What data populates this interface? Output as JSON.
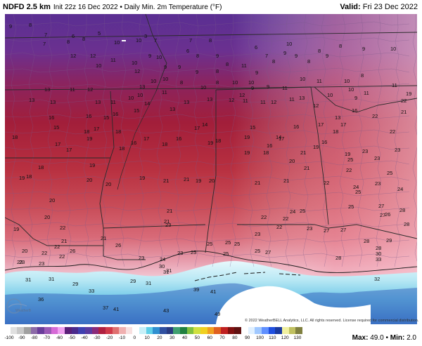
{
  "header": {
    "title_main": "NDFD 2.5 km",
    "title_rest": "Init 22z 16 Dec 2022 • Daily Min. 2m Temperature (°F)",
    "valid_label": "Valid:",
    "valid_value": "Fri 23 Dec 2022"
  },
  "copyright": "© 2022 WeatherBELL Analytics, LLC. All rights reserved. License required for commercial distribution.",
  "footer": {
    "max_label": "Max:",
    "max_value": "49.0",
    "min_label": "Min:",
    "min_value": "2.0",
    "colorbar_ticks": [
      "-100",
      "-90",
      "-80",
      "-70",
      "-60",
      "-50",
      "-40",
      "-30",
      "-20",
      "-10",
      "0",
      "10",
      "20",
      "30",
      "40",
      "50",
      "60",
      "70",
      "80",
      "90",
      "100",
      "110",
      "120",
      "130"
    ],
    "colorbar_colors": [
      "#ffffff",
      "#e0e0e0",
      "#c8c8c8",
      "#a0a0a0",
      "#8c6aa8",
      "#6a3d9a",
      "#9b59b6",
      "#d66ad6",
      "#f0a0f0",
      "#5a1f78",
      "#4b2a8c",
      "#4040b0",
      "#5a3aa0",
      "#8a2a7a",
      "#b02040",
      "#d03a4a",
      "#e07070",
      "#f0b0b0",
      "#f8e0e0",
      "#ffffff",
      "#c8f0f8",
      "#60d0e8",
      "#3090d0",
      "#3050a0",
      "#2a3a80",
      "#40a070",
      "#208040",
      "#80c040",
      "#d0e040",
      "#f0d020",
      "#f0a020",
      "#e06020",
      "#c02020",
      "#801010",
      "#601010",
      "#ffffff",
      "#e0f0ff",
      "#a0c8ff",
      "#6090ff",
      "#2050e0",
      "#1a3aa0",
      "#f0f0a0",
      "#c0c060",
      "#808040"
    ],
    "logo_name": "WeatherBELL logo"
  },
  "map": {
    "state_border_color": "#2a2a2a",
    "county_border_color": "#7a5a8a",
    "labels": [
      {
        "v": "9"
      },
      {
        "v": "8"
      },
      {
        "v": "7"
      },
      {
        "v": "7"
      },
      {
        "v": "8"
      },
      {
        "v": "6"
      },
      {
        "v": "8"
      },
      {
        "v": "5"
      },
      {
        "v": "3"
      },
      {
        "v": "7"
      },
      {
        "v": "7"
      },
      {
        "v": "8"
      },
      {
        "v": "10"
      },
      {
        "v": "10"
      },
      {
        "v": "9"
      },
      {
        "v": "10"
      },
      {
        "v": "6"
      },
      {
        "v": "8"
      },
      {
        "v": "9"
      },
      {
        "v": "6"
      },
      {
        "v": "7"
      },
      {
        "v": "10"
      },
      {
        "v": "8"
      },
      {
        "v": "8"
      },
      {
        "v": "9"
      },
      {
        "v": "10"
      },
      {
        "v": "12"
      },
      {
        "v": "12"
      },
      {
        "v": "11"
      },
      {
        "v": "10"
      },
      {
        "v": "9"
      },
      {
        "v": "9"
      },
      {
        "v": "9"
      },
      {
        "v": "8"
      },
      {
        "v": "8"
      },
      {
        "v": "11"
      },
      {
        "v": "9"
      },
      {
        "v": "8"
      },
      {
        "v": "9"
      },
      {
        "v": "9"
      },
      {
        "v": "8"
      },
      {
        "v": "9"
      },
      {
        "v": "10"
      },
      {
        "v": "12"
      },
      {
        "v": "10"
      },
      {
        "v": "8"
      },
      {
        "v": "8"
      },
      {
        "v": "10"
      },
      {
        "v": "10"
      },
      {
        "v": "11"
      },
      {
        "v": "10"
      },
      {
        "v": "10"
      },
      {
        "v": "11"
      },
      {
        "v": "11"
      },
      {
        "v": "13"
      },
      {
        "v": "11"
      },
      {
        "v": "12"
      },
      {
        "v": "13"
      },
      {
        "v": "10"
      },
      {
        "v": "10"
      },
      {
        "v": "9"
      },
      {
        "v": "9"
      },
      {
        "v": "11"
      },
      {
        "v": "10"
      },
      {
        "v": "8"
      },
      {
        "v": "13"
      },
      {
        "v": "13"
      },
      {
        "v": "13"
      },
      {
        "v": "11"
      },
      {
        "v": "10"
      },
      {
        "v": "10"
      },
      {
        "v": "11"
      },
      {
        "v": "12"
      },
      {
        "v": "12"
      },
      {
        "v": "13"
      },
      {
        "v": "10"
      },
      {
        "v": "9"
      },
      {
        "v": "19"
      },
      {
        "v": "15"
      },
      {
        "v": "15"
      },
      {
        "v": "14"
      },
      {
        "v": "13"
      },
      {
        "v": "13"
      },
      {
        "v": "13"
      },
      {
        "v": "12"
      },
      {
        "v": "11"
      },
      {
        "v": "11"
      },
      {
        "v": "11"
      },
      {
        "v": "12"
      },
      {
        "v": "13"
      },
      {
        "v": "16"
      },
      {
        "v": "22"
      },
      {
        "v": "16"
      },
      {
        "v": "16"
      },
      {
        "v": "16"
      },
      {
        "v": "17"
      },
      {
        "v": "14"
      },
      {
        "v": "15"
      },
      {
        "v": "14"
      },
      {
        "v": "16"
      },
      {
        "v": "17"
      },
      {
        "v": "17"
      },
      {
        "v": "22"
      },
      {
        "v": "21"
      },
      {
        "v": "18"
      },
      {
        "v": "17"
      },
      {
        "v": "18"
      },
      {
        "v": "18"
      },
      {
        "v": "17"
      },
      {
        "v": "16"
      },
      {
        "v": "18"
      },
      {
        "v": "19"
      },
      {
        "v": "17"
      },
      {
        "v": "21"
      },
      {
        "v": "22"
      },
      {
        "v": "23"
      },
      {
        "v": "15"
      },
      {
        "v": "17"
      },
      {
        "v": "16"
      },
      {
        "v": "18"
      },
      {
        "v": "19"
      },
      {
        "v": "19"
      },
      {
        "v": "18"
      },
      {
        "v": "16"
      },
      {
        "v": "19"
      },
      {
        "v": "16"
      },
      {
        "v": "18"
      },
      {
        "v": "19"
      },
      {
        "v": "23"
      },
      {
        "v": "19"
      },
      {
        "v": "18"
      },
      {
        "v": "17"
      },
      {
        "v": "19"
      },
      {
        "v": "19"
      },
      {
        "v": "19"
      },
      {
        "v": "20"
      },
      {
        "v": "21"
      },
      {
        "v": "22"
      },
      {
        "v": "23"
      },
      {
        "v": "25"
      },
      {
        "v": "18"
      },
      {
        "v": "18"
      },
      {
        "v": "20"
      },
      {
        "v": "21"
      },
      {
        "v": "21"
      },
      {
        "v": "21"
      },
      {
        "v": "24"
      },
      {
        "v": "25"
      },
      {
        "v": "19"
      },
      {
        "v": "20"
      },
      {
        "v": "20"
      },
      {
        "v": "21"
      },
      {
        "v": "20"
      },
      {
        "v": "22"
      },
      {
        "v": "23"
      },
      {
        "v": "24"
      },
      {
        "v": "25"
      },
      {
        "v": "27"
      },
      {
        "v": "26"
      },
      {
        "v": "21"
      },
      {
        "v": "21"
      },
      {
        "v": "22"
      },
      {
        "v": "22"
      },
      {
        "v": "22"
      },
      {
        "v": "27"
      },
      {
        "v": "25"
      },
      {
        "v": "28"
      },
      {
        "v": "20"
      },
      {
        "v": "22"
      },
      {
        "v": "21"
      },
      {
        "v": "23"
      },
      {
        "v": "24"
      },
      {
        "v": "25"
      },
      {
        "v": "27"
      },
      {
        "v": "28"
      },
      {
        "v": "28"
      },
      {
        "v": "29"
      },
      {
        "v": "28"
      },
      {
        "v": "19"
      },
      {
        "v": "22"
      },
      {
        "v": "21"
      },
      {
        "v": "23"
      },
      {
        "v": "25"
      },
      {
        "v": "25"
      },
      {
        "v": "27"
      },
      {
        "v": "28"
      },
      {
        "v": "23"
      },
      {
        "v": "23"
      },
      {
        "v": "26"
      },
      {
        "v": "26"
      },
      {
        "v": "25"
      },
      {
        "v": "25"
      },
      {
        "v": "23"
      },
      {
        "v": "27"
      },
      {
        "v": "23"
      },
      {
        "v": "22"
      },
      {
        "v": "22"
      },
      {
        "v": "20"
      },
      {
        "v": "25"
      },
      {
        "v": "25"
      },
      {
        "v": "30"
      },
      {
        "v": "33"
      },
      {
        "v": "30"
      },
      {
        "v": "23"
      },
      {
        "v": "23"
      },
      {
        "v": "24"
      },
      {
        "v": "31"
      },
      {
        "v": "31"
      },
      {
        "v": "32"
      },
      {
        "v": "31"
      },
      {
        "v": "31"
      },
      {
        "v": "29"
      },
      {
        "v": "29"
      },
      {
        "v": "31"
      },
      {
        "v": "39"
      },
      {
        "v": "41"
      },
      {
        "v": "33"
      },
      {
        "v": "36"
      },
      {
        "v": "37"
      },
      {
        "v": "41"
      },
      {
        "v": "43"
      },
      {
        "v": "49"
      }
    ]
  }
}
